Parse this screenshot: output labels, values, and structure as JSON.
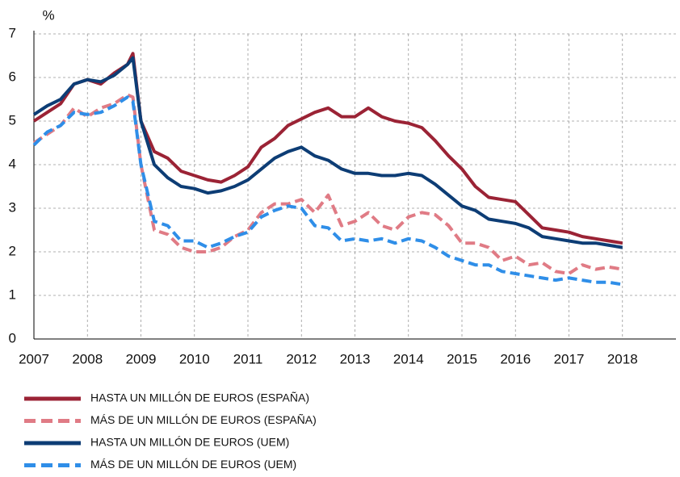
{
  "chart_data": {
    "type": "line",
    "y_label": "%",
    "x": [
      2007,
      2007.25,
      2007.5,
      2007.75,
      2008,
      2008.25,
      2008.5,
      2008.75,
      2008.85,
      2009,
      2009.25,
      2009.5,
      2009.75,
      2010,
      2010.25,
      2010.5,
      2010.75,
      2011,
      2011.25,
      2011.5,
      2011.75,
      2012,
      2012.25,
      2012.5,
      2012.75,
      2013,
      2013.25,
      2013.5,
      2013.75,
      2014,
      2014.25,
      2014.5,
      2014.75,
      2015,
      2015.25,
      2015.5,
      2015.75,
      2016,
      2016.25,
      2016.5,
      2016.75,
      2017,
      2017.25,
      2017.5,
      2017.75,
      2018
    ],
    "series": [
      {
        "name": "HASTA UN MILLÓN DE EUROS (ESPAÑA)",
        "color": "#9b2335",
        "style": "solid",
        "values": [
          5.0,
          5.2,
          5.4,
          5.85,
          5.95,
          5.85,
          6.1,
          6.3,
          6.55,
          5.0,
          4.3,
          4.15,
          3.85,
          3.75,
          3.65,
          3.6,
          3.75,
          3.95,
          4.4,
          4.6,
          4.9,
          5.05,
          5.2,
          5.3,
          5.1,
          5.1,
          5.3,
          5.1,
          5.0,
          4.95,
          4.85,
          4.55,
          4.2,
          3.9,
          3.5,
          3.25,
          3.2,
          3.15,
          2.85,
          2.55,
          2.5,
          2.45,
          2.35,
          2.3,
          2.25,
          2.2
        ]
      },
      {
        "name": "MÁS DE UN MILLÓN DE EUROS (ESPAÑA)",
        "color": "#e07b85",
        "style": "dashed",
        "values": [
          4.5,
          4.7,
          4.9,
          5.3,
          5.1,
          5.3,
          5.4,
          5.6,
          5.55,
          4.0,
          2.5,
          2.4,
          2.1,
          2.0,
          2.0,
          2.1,
          2.35,
          2.5,
          2.9,
          3.1,
          3.1,
          3.2,
          2.9,
          3.3,
          2.6,
          2.7,
          2.9,
          2.6,
          2.5,
          2.8,
          2.9,
          2.85,
          2.6,
          2.2,
          2.2,
          2.1,
          1.8,
          1.9,
          1.7,
          1.75,
          1.55,
          1.5,
          1.7,
          1.6,
          1.65,
          1.6
        ]
      },
      {
        "name": "HASTA UN MILLÓN DE EUROS (UEM)",
        "color": "#0d3d75",
        "style": "solid",
        "values": [
          5.15,
          5.35,
          5.5,
          5.85,
          5.95,
          5.9,
          6.05,
          6.3,
          6.45,
          5.0,
          4.0,
          3.7,
          3.5,
          3.45,
          3.35,
          3.4,
          3.5,
          3.65,
          3.9,
          4.15,
          4.3,
          4.4,
          4.2,
          4.1,
          3.9,
          3.8,
          3.8,
          3.75,
          3.75,
          3.8,
          3.75,
          3.55,
          3.3,
          3.05,
          2.95,
          2.75,
          2.7,
          2.65,
          2.55,
          2.35,
          2.3,
          2.25,
          2.2,
          2.2,
          2.15,
          2.1
        ]
      },
      {
        "name": "MÁS DE UN MILLÓN DE EUROS (UEM)",
        "color": "#2f8ee8",
        "style": "dashed",
        "values": [
          4.45,
          4.75,
          4.9,
          5.2,
          5.15,
          5.2,
          5.35,
          5.55,
          5.45,
          4.0,
          2.7,
          2.6,
          2.25,
          2.25,
          2.1,
          2.2,
          2.35,
          2.45,
          2.8,
          2.95,
          3.05,
          3.0,
          2.6,
          2.55,
          2.25,
          2.3,
          2.25,
          2.3,
          2.2,
          2.3,
          2.25,
          2.1,
          1.9,
          1.8,
          1.7,
          1.7,
          1.55,
          1.5,
          1.45,
          1.4,
          1.35,
          1.4,
          1.35,
          1.3,
          1.3,
          1.25
        ]
      }
    ],
    "xlim": [
      2007,
      2019
    ],
    "xticks": [
      2007,
      2008,
      2009,
      2010,
      2011,
      2012,
      2013,
      2014,
      2015,
      2016,
      2017,
      2018
    ],
    "ylim": [
      0,
      7
    ],
    "yticks": [
      0,
      1,
      2,
      3,
      4,
      5,
      6,
      7
    ],
    "grid": true
  }
}
